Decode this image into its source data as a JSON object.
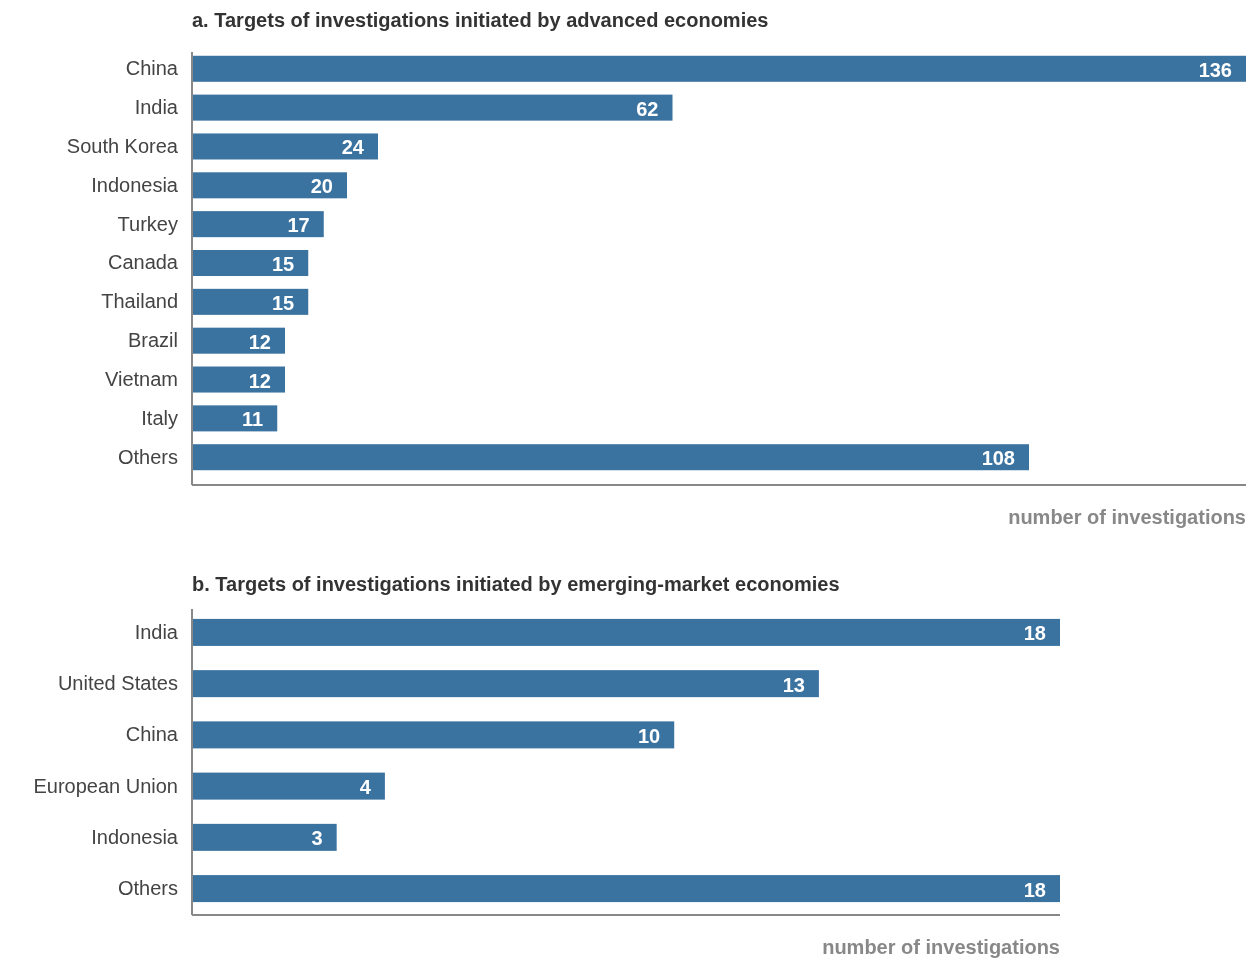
{
  "chart_data": [
    {
      "type": "bar",
      "orientation": "horizontal",
      "title": "a. Targets of investigations initiated by advanced economies",
      "xlabel": "number of investigations",
      "categories": [
        "China",
        "India",
        "South Korea",
        "Indonesia",
        "Turkey",
        "Canada",
        "Thailand",
        "Brazil",
        "Vietnam",
        "Italy",
        "Others"
      ],
      "values": [
        136,
        62,
        24,
        20,
        17,
        15,
        15,
        12,
        12,
        11,
        108
      ],
      "color": "#3a72a0",
      "data_labels": true
    },
    {
      "type": "bar",
      "orientation": "horizontal",
      "title": "b. Targets of investigations initiated by emerging-market economies",
      "xlabel": "number of investigations",
      "categories": [
        "India",
        "United States",
        "China",
        "European Union",
        "Indonesia",
        "Others"
      ],
      "values": [
        18,
        13,
        10,
        4,
        3,
        18
      ],
      "color": "#3a72a0",
      "data_labels": true
    }
  ]
}
